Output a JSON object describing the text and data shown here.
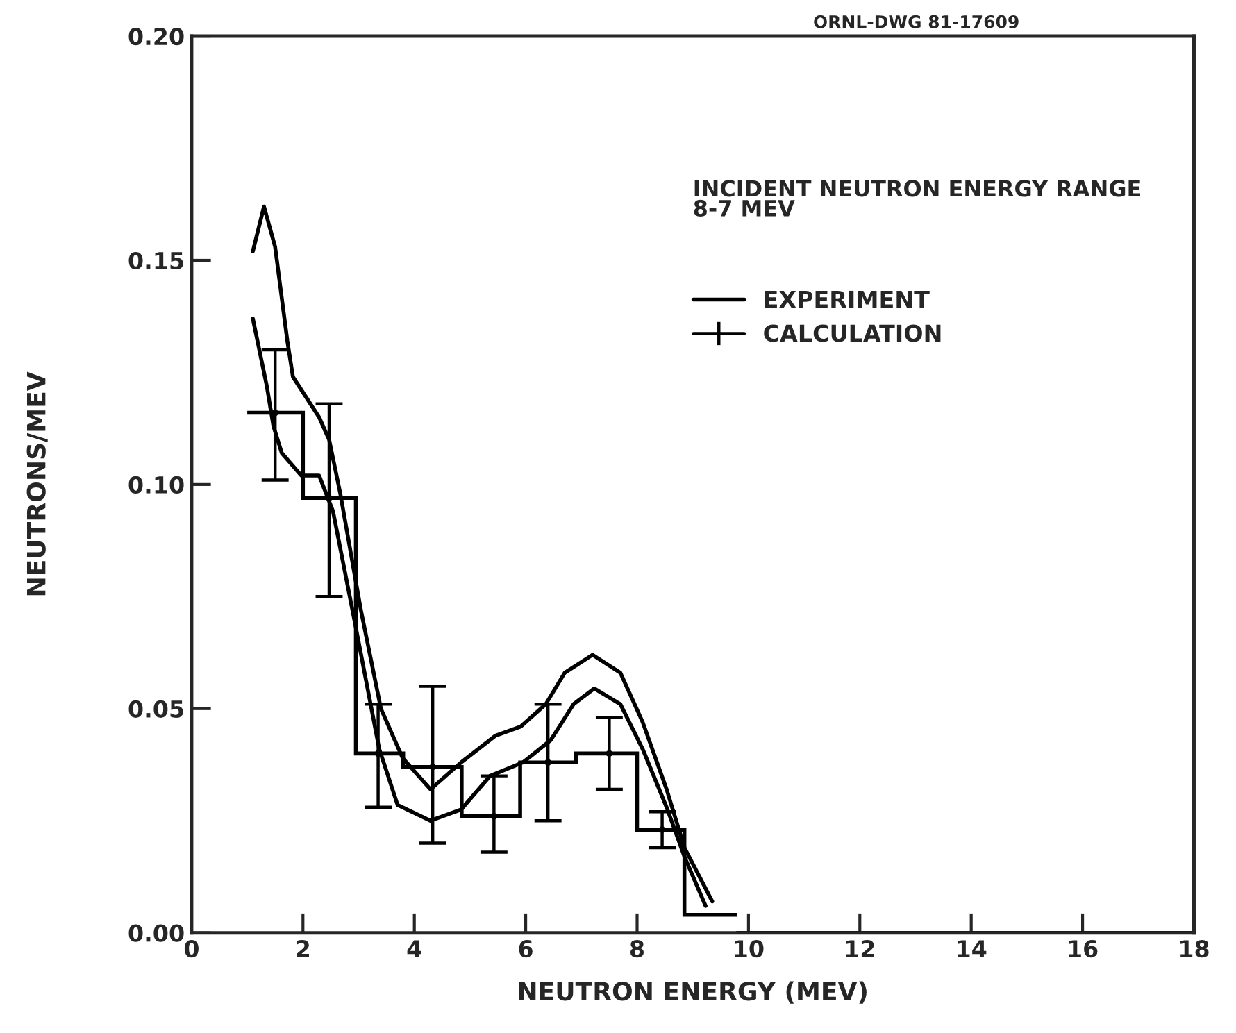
{
  "chart_data": {
    "type": "line",
    "xlabel": "NEUTRON ENERGY (MEV)",
    "ylabel": "NEUTRONS/MEV",
    "annotations": [
      "ORNL-DWG 81-17609",
      "INCIDENT NEUTRON ENERGY RANGE\n8-7 MEV"
    ],
    "series": [
      {
        "name": "EXPERIMENT",
        "color": "#000000",
        "x": [
          1.1,
          1.3,
          1.5,
          1.72,
          1.82,
          2.29,
          2.47,
          2.67,
          3.04,
          3.4,
          3.79,
          4.29,
          4.84,
          5.46,
          5.91,
          6.36,
          6.7,
          7.2,
          7.7,
          8.1,
          8.53,
          8.85,
          9.35
        ],
        "values": [
          0.152,
          0.162,
          0.153,
          0.132,
          0.124,
          0.115,
          0.11,
          0.098,
          0.072,
          0.05,
          0.039,
          0.032,
          0.038,
          0.044,
          0.046,
          0.051,
          0.058,
          0.062,
          0.058,
          0.047,
          0.032,
          0.019,
          0.007
        ]
      },
      {
        "color": "#000000",
        "x": [
          1.1,
          1.35,
          1.47,
          1.62,
          1.97,
          2.29,
          2.54,
          2.92,
          3.37,
          3.7,
          4.29,
          4.84,
          5.36,
          5.95,
          6.45,
          6.86,
          7.23,
          7.7,
          8.1,
          8.53,
          8.85,
          9.23
        ],
        "values": [
          0.137,
          0.122,
          0.113,
          0.107,
          0.102,
          0.102,
          0.094,
          0.07,
          0.041,
          0.0285,
          0.025,
          0.0275,
          0.035,
          0.038,
          0.043,
          0.051,
          0.0545,
          0.051,
          0.041,
          0.028,
          0.017,
          0.006
        ]
      },
      {
        "type": "histogram",
        "name": "CALCULATION",
        "color": "#000000",
        "bins": [
          1.0,
          2.0,
          2.95,
          3.8,
          4.85,
          5.9,
          6.9,
          8.0,
          8.85,
          9.8
        ],
        "values": [
          0.116,
          0.097,
          0.04,
          0.037,
          0.026,
          0.038,
          0.04,
          0.023,
          0.004
        ]
      },
      {
        "type": "scatter",
        "marker": "circle",
        "color": "#000000",
        "x": [
          1.5,
          2.47,
          3.35,
          4.33,
          5.43,
          6.4,
          7.5,
          8.45
        ],
        "values": [
          0.116,
          0.097,
          0.04,
          0.037,
          0.026,
          0.038,
          0.04,
          0.023
        ],
        "errors": [
          [
            0.101,
            0.13
          ],
          [
            0.075,
            0.118
          ],
          [
            0.028,
            0.051
          ],
          [
            0.02,
            0.055
          ],
          [
            0.018,
            0.035
          ],
          [
            0.025,
            0.051
          ],
          [
            0.032,
            0.048
          ],
          [
            0.019,
            0.027
          ]
        ]
      }
    ],
    "xlim": [
      0,
      18
    ],
    "xticks": [
      0,
      2,
      4,
      6,
      8,
      10,
      12,
      14,
      16,
      18
    ],
    "ylim": [
      0,
      0.2
    ],
    "yticks": [
      {
        "value": 0,
        "label": "0.00"
      },
      {
        "value": 0.05,
        "label": "0.05"
      },
      {
        "value": 0.1,
        "label": "0.10"
      },
      {
        "value": 0.15,
        "label": "0.15"
      },
      {
        "value": 0.2,
        "label": "0.20"
      }
    ],
    "grid": false,
    "legend": "top right",
    "marker": "none",
    "line_style": "solid"
  }
}
